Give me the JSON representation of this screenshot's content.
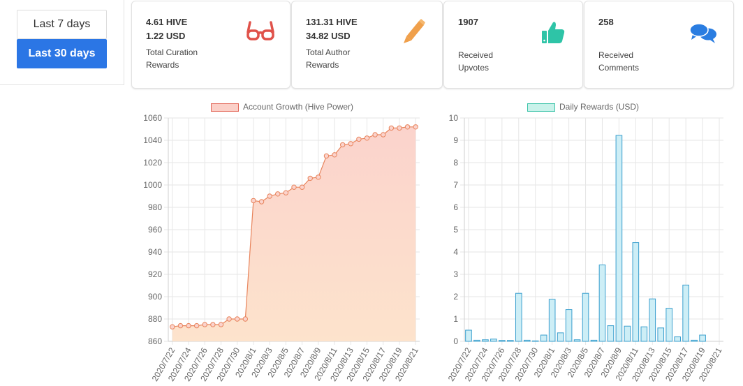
{
  "range": {
    "options": [
      "Last 7 days",
      "Last 30 days"
    ],
    "selected": "Last 30 days"
  },
  "cards": {
    "curation": {
      "value1": "4.61 HIVE",
      "value2": "1.22 USD",
      "label1": "Total Curation",
      "label2": "Rewards",
      "icon": "glasses-icon",
      "color": "#e0524a"
    },
    "author": {
      "value1": "131.31 HIVE",
      "value2": "34.82 USD",
      "label1": "Total Author",
      "label2": "Rewards",
      "icon": "pencil-icon",
      "color": "#f0a04b"
    },
    "upvotes": {
      "value1": "1907",
      "label1": "Received",
      "label2": "Upvotes",
      "icon": "thumbs-up-icon",
      "color": "#2ec4a7"
    },
    "comments": {
      "value1": "258",
      "label1": "Received",
      "label2": "Comments",
      "icon": "comments-icon",
      "color": "#2a7de1"
    }
  },
  "chart_data": [
    {
      "type": "line",
      "legend": "Account Growth (Hive Power)",
      "x": [
        "2020/7/22",
        "2020/7/23",
        "2020/7/24",
        "2020/7/25",
        "2020/7/26",
        "2020/7/27",
        "2020/7/28",
        "2020/7/29",
        "2020/7/30",
        "2020/7/31",
        "2020/8/1",
        "2020/8/2",
        "2020/8/3",
        "2020/8/4",
        "2020/8/5",
        "2020/8/6",
        "2020/8/7",
        "2020/8/8",
        "2020/8/9",
        "2020/8/10",
        "2020/8/11",
        "2020/8/12",
        "2020/8/13",
        "2020/8/14",
        "2020/8/15",
        "2020/8/16",
        "2020/8/17",
        "2020/8/18",
        "2020/8/19",
        "2020/8/20",
        "2020/8/21"
      ],
      "xticks": [
        "2020/7/22",
        "2020/7/24",
        "2020/7/26",
        "2020/7/28",
        "2020/7/30",
        "2020/8/1",
        "2020/8/3",
        "2020/8/5",
        "2020/8/7",
        "2020/8/9",
        "2020/8/11",
        "2020/8/13",
        "2020/8/15",
        "2020/8/17",
        "2020/8/19",
        "2020/8/21"
      ],
      "values": [
        873,
        874,
        874,
        874,
        875,
        875,
        875,
        880,
        880,
        880,
        986,
        985,
        990,
        992,
        993,
        998,
        998,
        1006,
        1007,
        1026,
        1027,
        1036,
        1037,
        1041,
        1042,
        1045,
        1045,
        1051,
        1051,
        1052,
        1052
      ],
      "ylim": [
        860,
        1060
      ],
      "yticks": [
        860,
        880,
        900,
        920,
        940,
        960,
        980,
        1000,
        1020,
        1040,
        1060
      ],
      "grid": true,
      "colors": {
        "line": "#e8845c",
        "fill_top": "#fbd3cc",
        "fill_bottom": "#fde3cc",
        "legend_fill": "#fbd0c8",
        "legend_border": "#e36a5c"
      }
    },
    {
      "type": "bar",
      "legend": "Daily Rewards (USD)",
      "x": [
        "2020/7/22",
        "2020/7/23",
        "2020/7/24",
        "2020/7/25",
        "2020/7/26",
        "2020/7/27",
        "2020/7/28",
        "2020/7/29",
        "2020/7/30",
        "2020/7/31",
        "2020/8/1",
        "2020/8/2",
        "2020/8/3",
        "2020/8/4",
        "2020/8/5",
        "2020/8/6",
        "2020/8/7",
        "2020/8/8",
        "2020/8/9",
        "2020/8/10",
        "2020/8/11",
        "2020/8/12",
        "2020/8/13",
        "2020/8/14",
        "2020/8/15",
        "2020/8/16",
        "2020/8/17",
        "2020/8/18",
        "2020/8/19",
        "2020/8/20",
        "2020/8/21"
      ],
      "xticks": [
        "2020/7/22",
        "2020/7/24",
        "2020/7/26",
        "2020/7/28",
        "2020/7/30",
        "2020/8/1",
        "2020/8/3",
        "2020/8/5",
        "2020/8/7",
        "2020/8/9",
        "2020/8/11",
        "2020/8/13",
        "2020/8/15",
        "2020/8/17",
        "2020/8/19",
        "2020/8/21"
      ],
      "values": [
        0.5,
        0.05,
        0.07,
        0.1,
        0.04,
        0.04,
        2.15,
        0.05,
        0.02,
        0.28,
        1.88,
        0.38,
        1.42,
        0.07,
        2.15,
        0.05,
        3.42,
        0.7,
        9.22,
        0.68,
        4.42,
        0.65,
        1.9,
        0.6,
        1.48,
        0.2,
        2.52,
        0.05,
        0.28,
        0,
        0
      ],
      "ylim": [
        0,
        10
      ],
      "yticks": [
        0,
        1,
        2,
        3,
        4,
        5,
        6,
        7,
        8,
        9,
        10
      ],
      "grid": true,
      "colors": {
        "bar_fill": "#cdeef6",
        "bar_border": "#3a9fce",
        "legend_fill": "#c9f2ea",
        "legend_border": "#3bc3a8"
      }
    }
  ]
}
